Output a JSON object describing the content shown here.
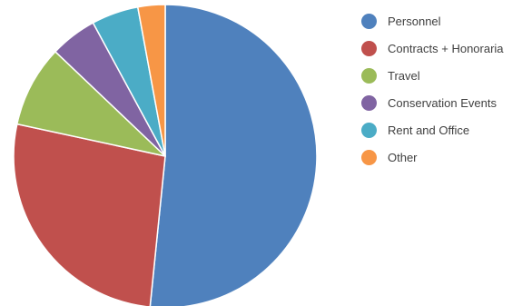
{
  "chart_data": {
    "type": "pie",
    "title": "",
    "legend_placement": "right",
    "start_angle_deg": 0,
    "direction": "clockwise",
    "slices": [
      {
        "label": "Personnel",
        "value": 51.6,
        "color": "#4f81bd"
      },
      {
        "label": "Contracts + Honoraria",
        "value": 26.8,
        "color": "#c0504d"
      },
      {
        "label": "Travel",
        "value": 8.7,
        "color": "#9bbb59"
      },
      {
        "label": "Conservation Events",
        "value": 5.0,
        "color": "#8064a2"
      },
      {
        "label": "Rent and Office",
        "value": 5.0,
        "color": "#4bacc6"
      },
      {
        "label": "Other",
        "value": 2.9,
        "color": "#f79646"
      }
    ]
  }
}
